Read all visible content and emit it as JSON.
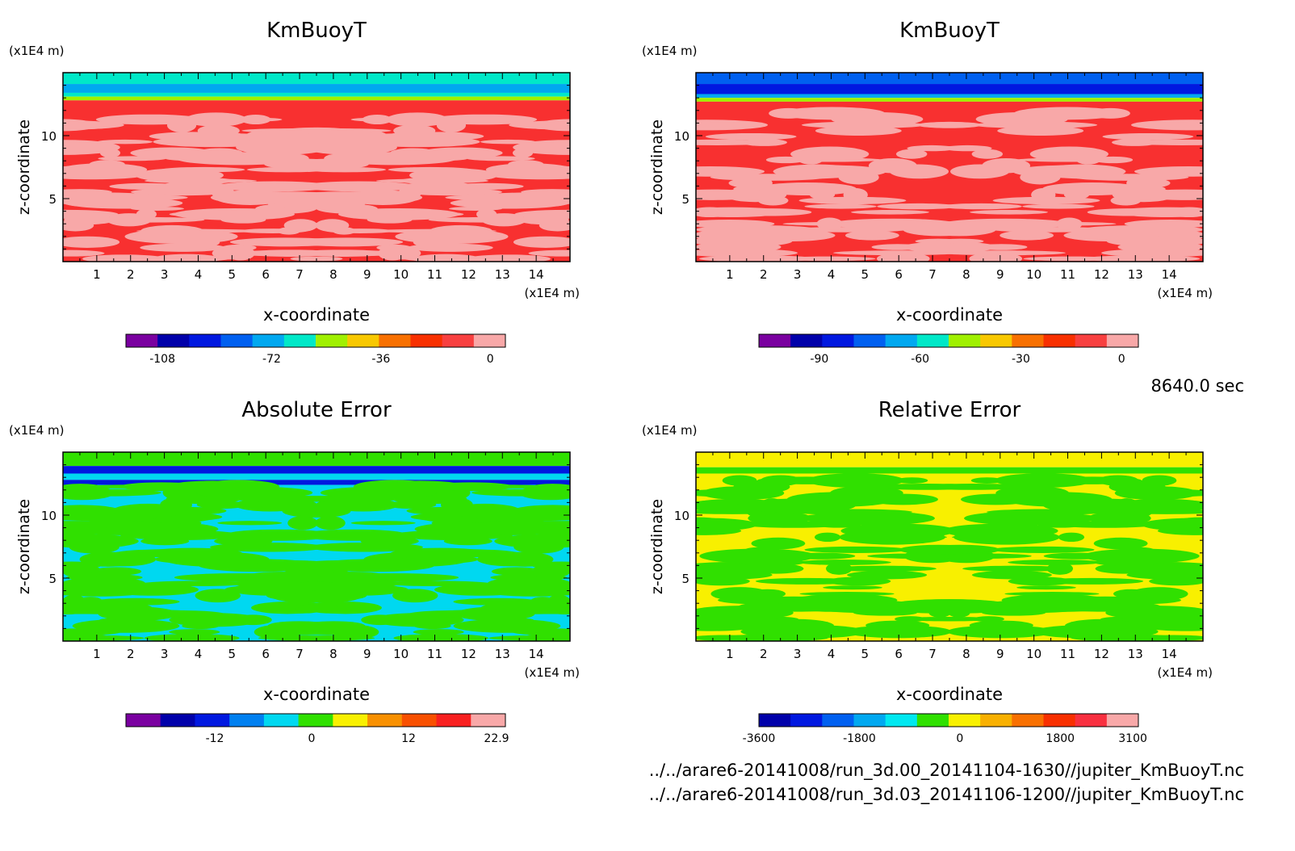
{
  "time_label": "8640.0 sec",
  "files": [
    "../../arare6-20141008/run_3d.00_20141104-1630//jupiter_KmBuoyT.nc",
    "../../arare6-20141008/run_3d.03_20141106-1200//jupiter_KmBuoyT.nc"
  ],
  "chart_data": [
    {
      "type": "heatmap",
      "title": "KmBuoyT",
      "xlabel": "x-coordinate",
      "ylabel": "z-coordinate",
      "x_unit": "(x1E4 m)",
      "y_unit": "(x1E4 m)",
      "x_ticks": [
        "1",
        "2",
        "3",
        "4",
        "5",
        "6",
        "7",
        "8",
        "9",
        "10",
        "11",
        "12",
        "13",
        "14"
      ],
      "y_ticks": [
        "5",
        "10"
      ],
      "xlim": [
        0,
        15
      ],
      "ylim": [
        0,
        15
      ],
      "colorbar": {
        "colors": [
          "#7a00a0",
          "#0000aa",
          "#0018e0",
          "#0060f0",
          "#00a8f0",
          "#00e8c8",
          "#a0f000",
          "#f8c800",
          "#f87000",
          "#f83000",
          "#f84040",
          "#f8a8a8"
        ],
        "ticks": [
          "-108",
          "-72",
          "-36",
          "0"
        ],
        "range": [
          -120,
          5
        ]
      },
      "bands": [
        {
          "z": [
            14.1,
            15.0
          ],
          "color": "#00e8c8"
        },
        {
          "z": [
            13.4,
            14.1
          ],
          "color": "#00a8f0"
        },
        {
          "z": [
            13.1,
            13.4
          ],
          "color": "#00e8c8"
        },
        {
          "z": [
            12.8,
            13.1
          ],
          "color": "#a0f000"
        },
        {
          "z": [
            0,
            12.8
          ],
          "color": "#f83030"
        }
      ],
      "pattern": {
        "color": "#f8a8a8",
        "zmax": 11.5,
        "seed": 7,
        "density": 0.5
      }
    },
    {
      "type": "heatmap",
      "title": "KmBuoyT",
      "xlabel": "x-coordinate",
      "ylabel": "z-coordinate",
      "x_unit": "(x1E4 m)",
      "y_unit": "(x1E4 m)",
      "x_ticks": [
        "1",
        "2",
        "3",
        "4",
        "5",
        "6",
        "7",
        "8",
        "9",
        "10",
        "11",
        "12",
        "13",
        "14"
      ],
      "y_ticks": [
        "5",
        "10"
      ],
      "xlim": [
        0,
        15
      ],
      "ylim": [
        0,
        15
      ],
      "colorbar": {
        "colors": [
          "#7a00a0",
          "#0000aa",
          "#0018e0",
          "#0060f0",
          "#00a8f0",
          "#00e8c8",
          "#a0f000",
          "#f8c800",
          "#f87000",
          "#f83000",
          "#f84040",
          "#f8a8a8"
        ],
        "ticks": [
          "-90",
          "-60",
          "-30",
          "0"
        ],
        "range": [
          -108,
          5
        ]
      },
      "bands": [
        {
          "z": [
            14.1,
            15.0
          ],
          "color": "#0060f0"
        },
        {
          "z": [
            13.3,
            14.1
          ],
          "color": "#0018e0"
        },
        {
          "z": [
            13.0,
            13.3
          ],
          "color": "#00a8f0"
        },
        {
          "z": [
            12.7,
            13.0
          ],
          "color": "#a0f000"
        },
        {
          "z": [
            0,
            12.7
          ],
          "color": "#f83030"
        }
      ],
      "pattern": {
        "color": "#f8a8a8",
        "zmax": 12.0,
        "seed": 13,
        "density": 0.35
      }
    },
    {
      "type": "heatmap",
      "title": "Absolute Error",
      "xlabel": "x-coordinate",
      "ylabel": "z-coordinate",
      "x_unit": "(x1E4 m)",
      "y_unit": "(x1E4 m)",
      "x_ticks": [
        "1",
        "2",
        "3",
        "4",
        "5",
        "6",
        "7",
        "8",
        "9",
        "10",
        "11",
        "12",
        "13",
        "14"
      ],
      "y_ticks": [
        "5",
        "10"
      ],
      "xlim": [
        0,
        15
      ],
      "ylim": [
        0,
        15
      ],
      "colorbar": {
        "colors": [
          "#7a00a0",
          "#0000aa",
          "#0018e0",
          "#0080f0",
          "#00d8f0",
          "#30e000",
          "#f8f000",
          "#f89000",
          "#f85000",
          "#f82020",
          "#f8a8a8"
        ],
        "ticks": [
          "-12",
          "0",
          "12",
          "22.9"
        ],
        "range": [
          -23,
          24
        ]
      },
      "bands": [
        {
          "z": [
            13.9,
            15.0
          ],
          "color": "#30e000"
        },
        {
          "z": [
            13.3,
            13.9
          ],
          "color": "#0018e0"
        },
        {
          "z": [
            12.8,
            13.3
          ],
          "color": "#00d8f0"
        },
        {
          "z": [
            12.4,
            12.8
          ],
          "color": "#0018e0"
        },
        {
          "z": [
            0,
            12.4
          ],
          "color": "#00d8f0"
        }
      ],
      "pattern": {
        "color": "#30e000",
        "zmax": 12.5,
        "seed": 21,
        "density": 0.5
      }
    },
    {
      "type": "heatmap",
      "title": "Relative Error",
      "xlabel": "x-coordinate",
      "ylabel": "z-coordinate",
      "x_unit": "(x1E4 m)",
      "y_unit": "(x1E4 m)",
      "x_ticks": [
        "1",
        "2",
        "3",
        "4",
        "5",
        "6",
        "7",
        "8",
        "9",
        "10",
        "11",
        "12",
        "13",
        "14"
      ],
      "y_ticks": [
        "5",
        "10"
      ],
      "xlim": [
        0,
        15
      ],
      "ylim": [
        0,
        15
      ],
      "colorbar": {
        "colors": [
          "#0000aa",
          "#0018e0",
          "#0060f0",
          "#00a8f0",
          "#00e8f0",
          "#30e000",
          "#f8f000",
          "#f8b000",
          "#f87000",
          "#f83000",
          "#f83040",
          "#f8a8a8"
        ],
        "ticks": [
          "-3600",
          "-1800",
          "0",
          "1800",
          "3100"
        ],
        "range": [
          -3600,
          3200
        ]
      },
      "bands": [
        {
          "z": [
            13.8,
            15.0
          ],
          "color": "#f8f000"
        },
        {
          "z": [
            13.3,
            13.8
          ],
          "color": "#30e000"
        },
        {
          "z": [
            0,
            13.3
          ],
          "color": "#f8f000"
        }
      ],
      "pattern": {
        "color": "#30e000",
        "zmax": 13.0,
        "seed": 33,
        "density": 0.45
      }
    }
  ]
}
